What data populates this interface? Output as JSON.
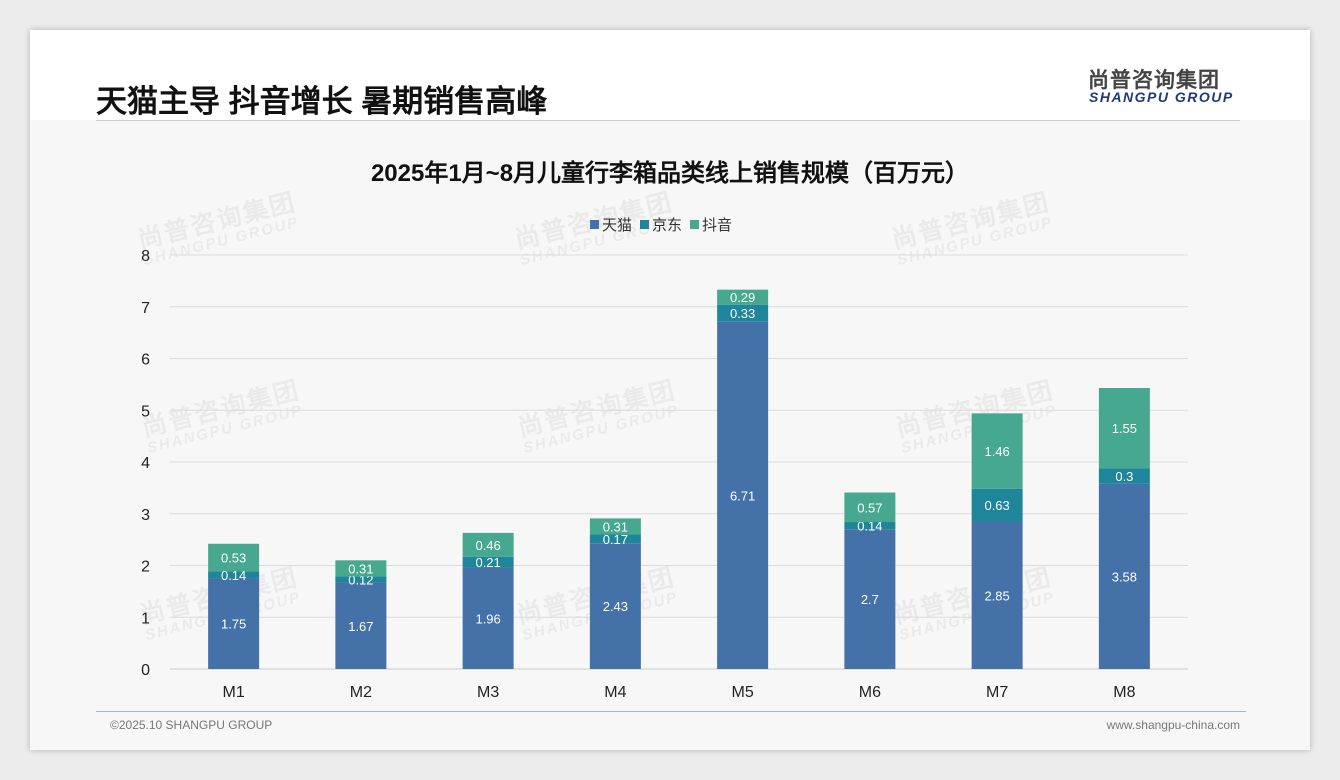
{
  "header": {
    "title": "天猫主导 抖音增长 暑期销售高峰",
    "logo_cn": "尚普咨询集团",
    "logo_en": "SHANGPU GROUP"
  },
  "watermark": {
    "cn": "尚普咨询集团",
    "en": "SHANGPU GROUP"
  },
  "footer": {
    "copyright": "©2025.10 SHANGPU GROUP",
    "website": "www.shangpu-china.com"
  },
  "colors": {
    "tmall": "#4472a8",
    "jd": "#1f859a",
    "douyin": "#46a88e",
    "grid": "#dcdcdc",
    "axis_text": "#222222"
  },
  "chart_data": {
    "type": "bar",
    "stacked": true,
    "title": "2025年1月~8月儿童行李箱品类线上销售规模（百万元）",
    "xlabel": "",
    "ylabel": "",
    "ylim": [
      0,
      8
    ],
    "yticks": [
      0,
      1,
      2,
      3,
      4,
      5,
      6,
      7,
      8
    ],
    "grid": true,
    "legend_position": "top-center",
    "categories": [
      "M1",
      "M2",
      "M3",
      "M4",
      "M5",
      "M6",
      "M7",
      "M8"
    ],
    "series": [
      {
        "name": "天猫",
        "color": "#4472a8",
        "values": [
          1.75,
          1.67,
          1.96,
          2.43,
          6.71,
          2.7,
          2.85,
          3.58
        ]
      },
      {
        "name": "京东",
        "color": "#1f859a",
        "values": [
          0.14,
          0.12,
          0.21,
          0.17,
          0.33,
          0.14,
          0.63,
          0.3
        ]
      },
      {
        "name": "抖音",
        "color": "#46a88e",
        "values": [
          0.53,
          0.31,
          0.46,
          0.31,
          0.29,
          0.57,
          1.46,
          1.55
        ]
      }
    ]
  }
}
